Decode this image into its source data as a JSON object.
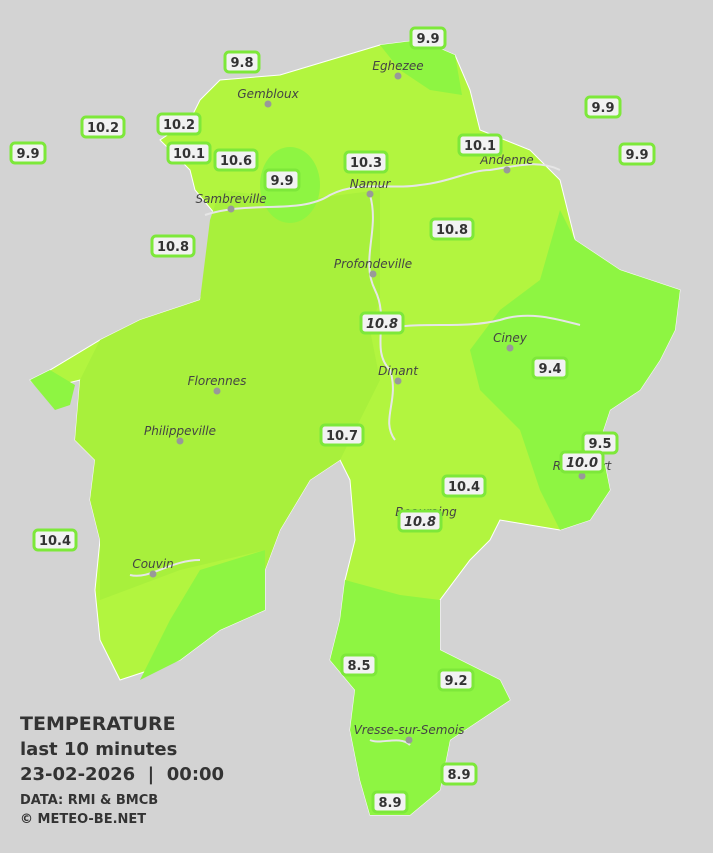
{
  "legend": {
    "title": "TEMPERATURE",
    "subtitle": "last 10 minutes",
    "datetime": "23-02-2026  |  00:00",
    "data_source": "DATA: RMI & BMCB",
    "copyright": "© METEO-BE.NET"
  },
  "towns": [
    "Eghezee",
    "Gembloux",
    "Andenne",
    "Namur",
    "Sambreville",
    "Profondeville",
    "Ciney",
    "Dinant",
    "Florennes",
    "Philippeville",
    "Rochefort",
    "Beauraing",
    "Couvin",
    "Vresse-sur-Semois"
  ],
  "stations": [
    {
      "value": "9.9"
    },
    {
      "value": "9.8"
    },
    {
      "value": "9.9"
    },
    {
      "value": "10.2"
    },
    {
      "value": "10.2"
    },
    {
      "value": "9.9"
    },
    {
      "value": "10.1"
    },
    {
      "value": "10.6"
    },
    {
      "value": "10.3"
    },
    {
      "value": "10.1"
    },
    {
      "value": "9.9"
    },
    {
      "value": "9.9"
    },
    {
      "value": "10.8"
    },
    {
      "value": "10.8"
    },
    {
      "value": "10.8",
      "italic": true
    },
    {
      "value": "9.4"
    },
    {
      "value": "10.7"
    },
    {
      "value": "9.5"
    },
    {
      "value": "10.0",
      "italic": true
    },
    {
      "value": "10.4"
    },
    {
      "value": "10.8",
      "italic": true
    },
    {
      "value": "10.4"
    },
    {
      "value": "8.5"
    },
    {
      "value": "9.2"
    },
    {
      "value": "8.9"
    },
    {
      "value": "8.9"
    }
  ]
}
